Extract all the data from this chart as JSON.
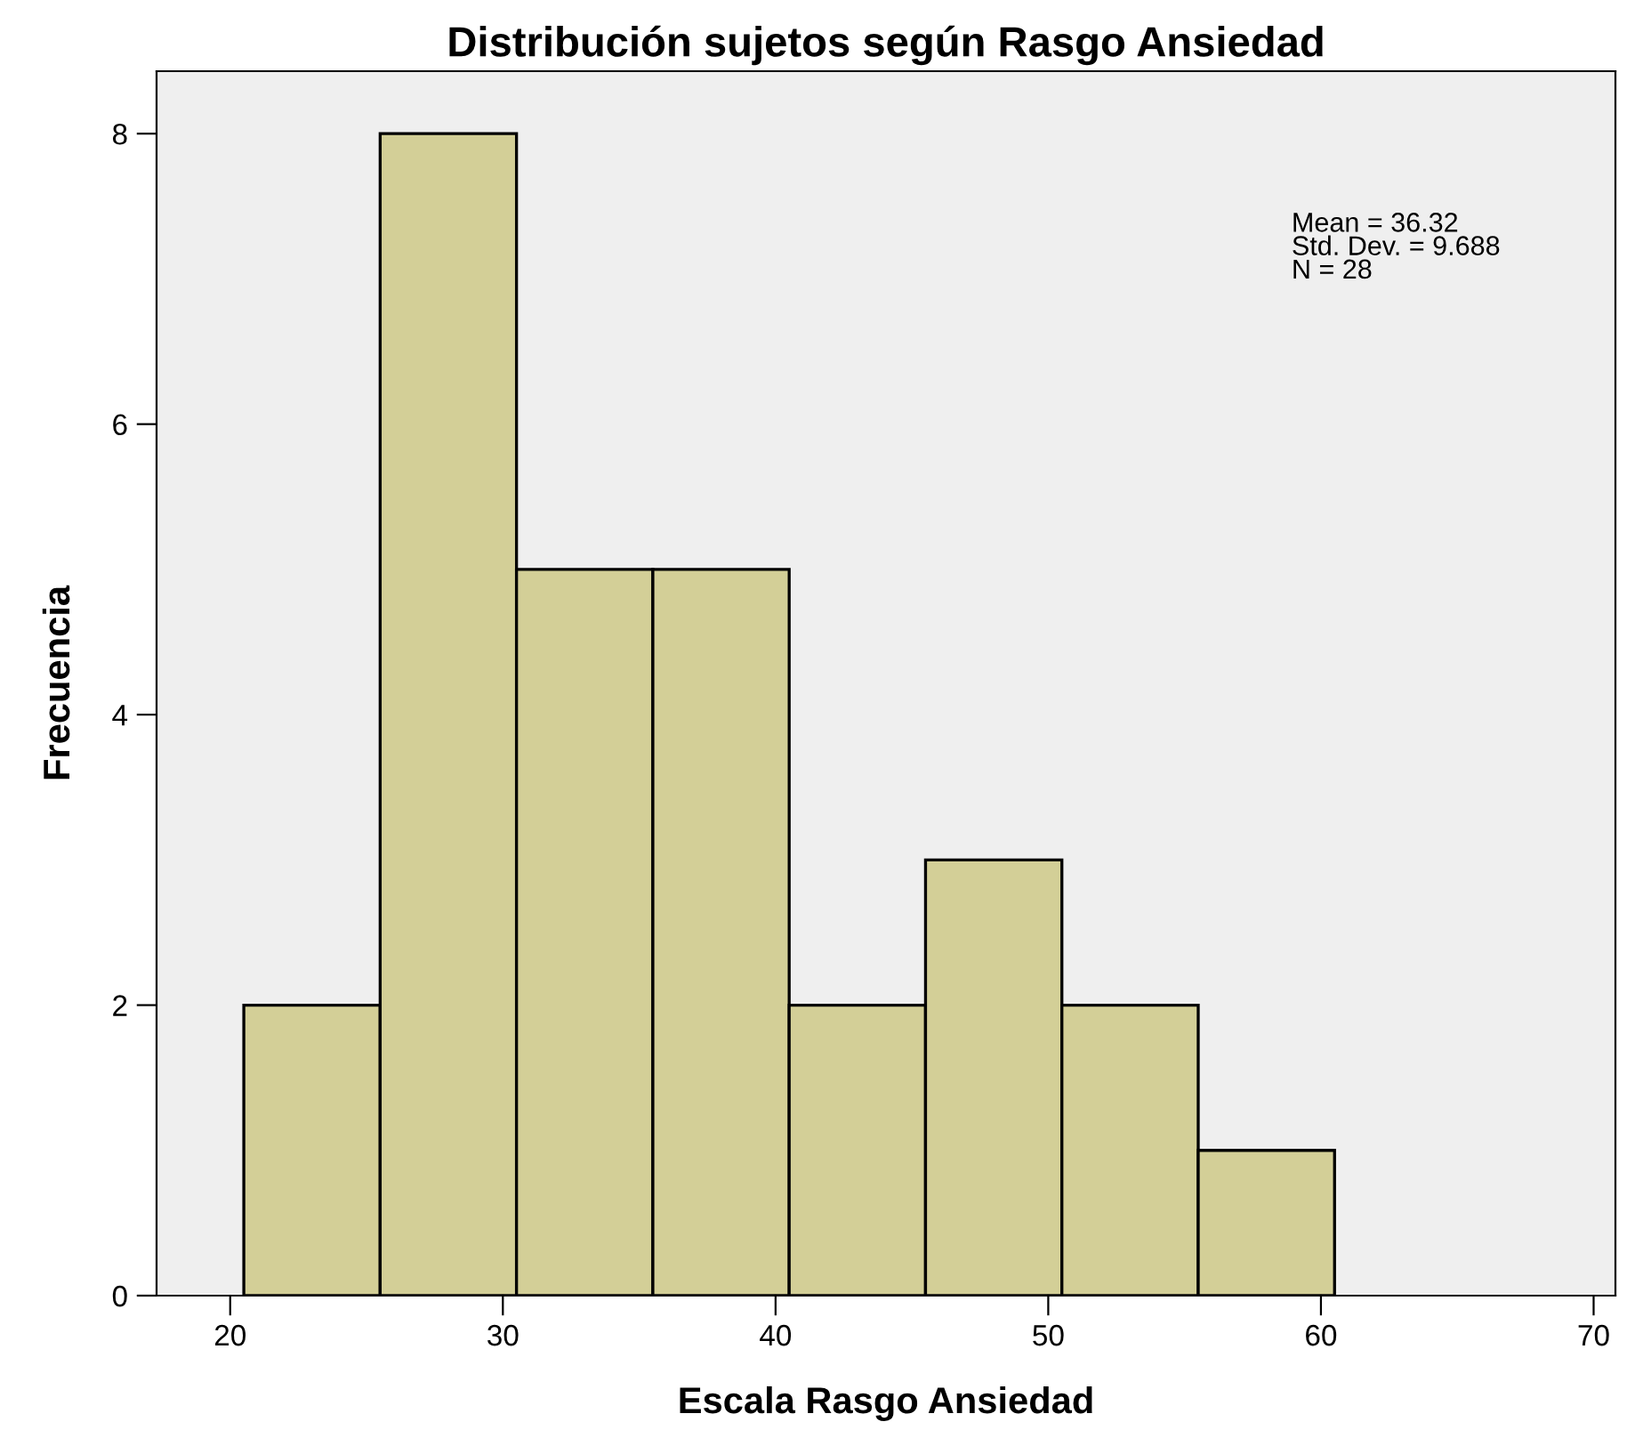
{
  "chart_data": {
    "type": "histogram",
    "title": "Distribución sujetos según Rasgo Ansiedad",
    "xlabel": "Escala Rasgo Ansiedad",
    "ylabel": "Frecuencia",
    "bins": [
      20.5,
      25.5,
      30.5,
      35.5,
      40.5,
      45.5,
      50.5,
      55.5,
      60.5
    ],
    "values": [
      2,
      8,
      5,
      5,
      2,
      3,
      2,
      1
    ],
    "color": "#d3cf97",
    "xlim": [
      17.3,
      70.8
    ],
    "xticks": [
      20,
      30,
      40,
      50,
      60,
      70
    ],
    "ylim": [
      0,
      8.43
    ],
    "yticks": [
      0,
      2,
      4,
      6,
      8
    ],
    "grid": false,
    "legend": false,
    "annotations": [
      "Mean = 36.32\nStd. Dev. = 9.688\nN = 28"
    ]
  }
}
